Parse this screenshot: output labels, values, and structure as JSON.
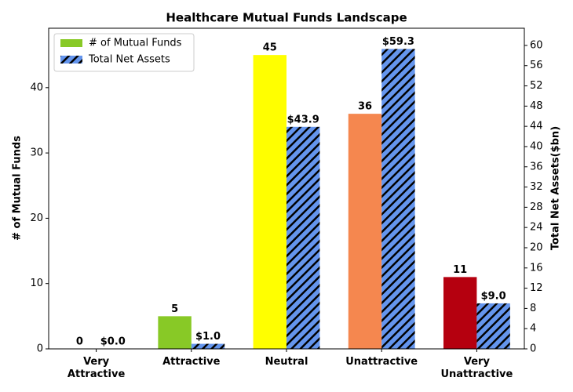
{
  "chart_data": {
    "type": "bar",
    "title": "Healthcare Mutual Funds Landscape",
    "y_label": "# of Mutual Funds",
    "y2_label": "Total Net Assets($bn)",
    "categories": [
      "Very\nAttractive",
      "Attractive",
      "Neutral",
      "Unattractive",
      "Very\nUnattractive"
    ],
    "series": [
      {
        "name": "# of Mutual Funds",
        "colors": [
          "#88c926",
          "#88c926",
          "#ffff00",
          "#f5874f",
          "#b5000f"
        ],
        "values": [
          0,
          5,
          45,
          36,
          11
        ]
      },
      {
        "name": "Total Net Assets",
        "color": "#6495ed",
        "hatch": true,
        "axis": "y2",
        "values": [
          0.0,
          1.0,
          43.9,
          59.3,
          9.0
        ],
        "value_labels": [
          "$0.0",
          "$1.0",
          "$43.9",
          "$59.3",
          "$9.0"
        ]
      }
    ],
    "ylim": [
      0,
      49.1
    ],
    "yticks": [
      0,
      10,
      20,
      30,
      40
    ],
    "y2lim": [
      0,
      63.4
    ],
    "y2ticks": [
      0,
      4,
      8,
      12,
      16,
      20,
      24,
      28,
      32,
      36,
      40,
      44,
      48,
      52,
      56,
      60
    ],
    "legend": "upper-left"
  }
}
